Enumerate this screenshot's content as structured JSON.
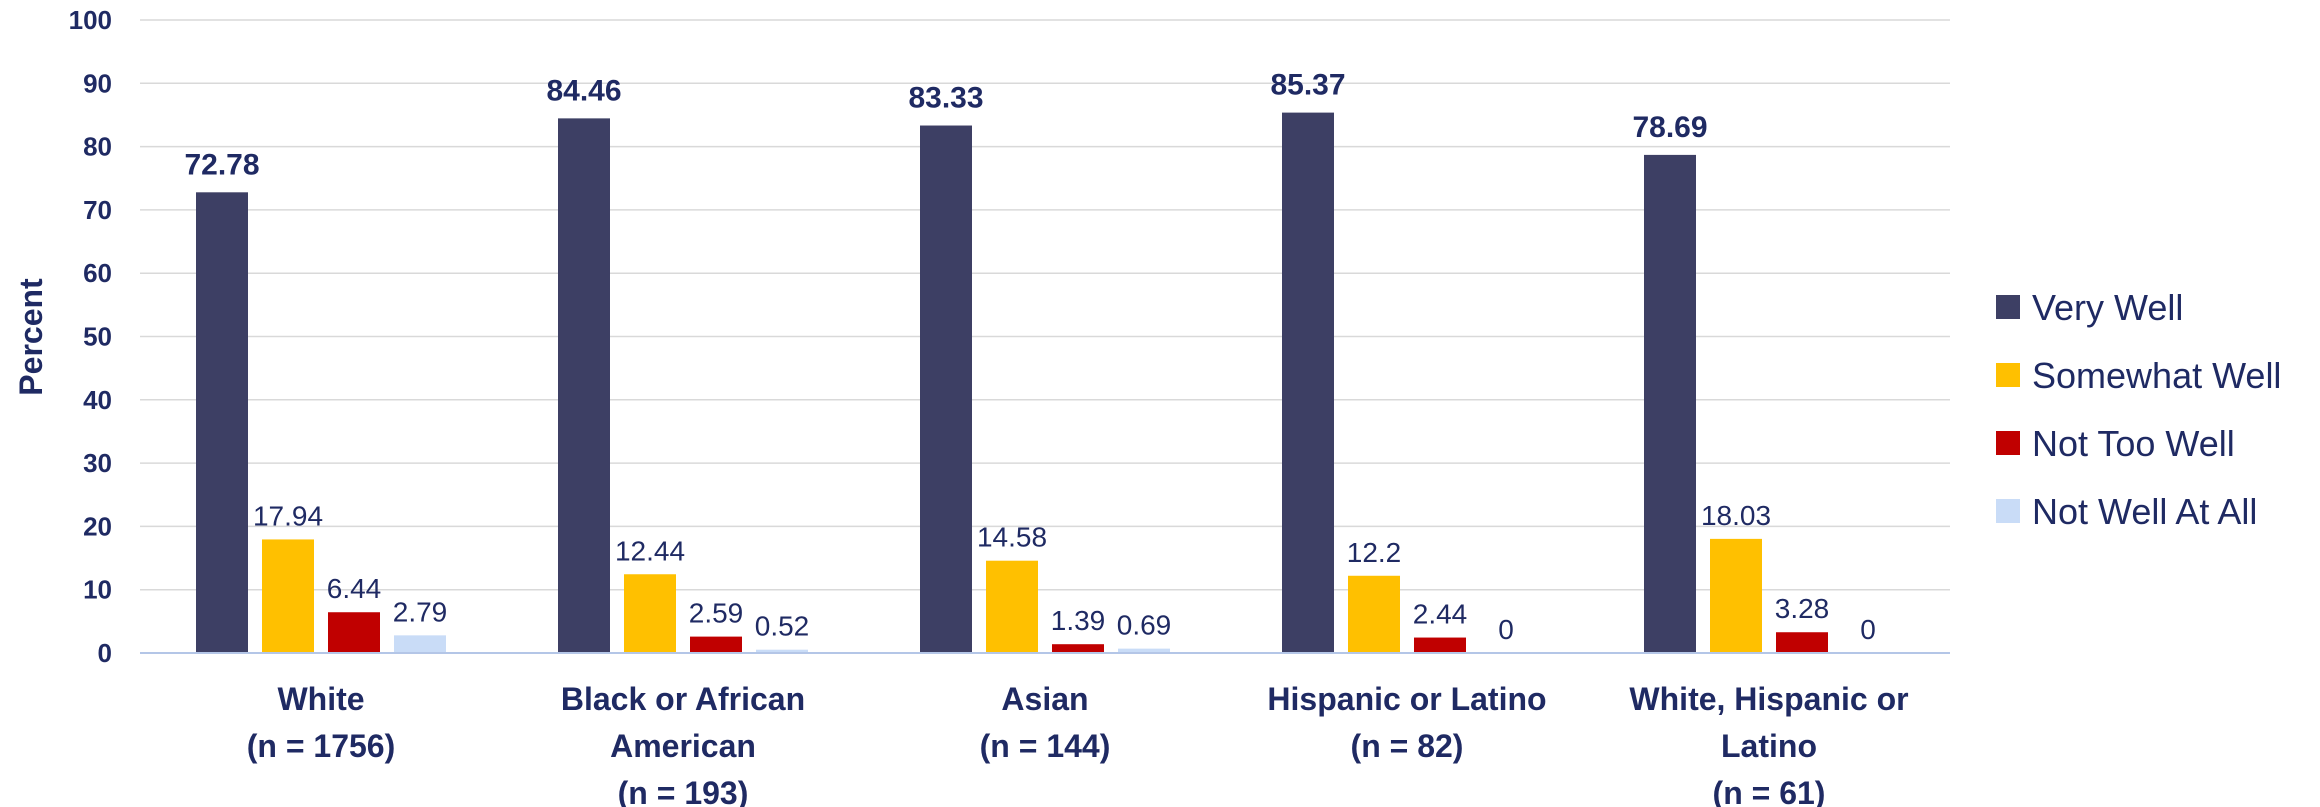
{
  "chart_data": {
    "type": "bar",
    "categories": [
      [
        "White",
        "(n = 1756)"
      ],
      [
        "Black or African",
        "American",
        "(n = 193)"
      ],
      [
        "Asian",
        "(n = 144)"
      ],
      [
        "Hispanic or Latino",
        "(n = 82)"
      ],
      [
        "White, Hispanic or",
        "Latino",
        "(n = 61)"
      ]
    ],
    "series": [
      {
        "name": "Very Well",
        "color": "#3d3f64",
        "values": [
          72.78,
          84.46,
          83.33,
          85.37,
          78.69
        ],
        "labels": [
          "72.78",
          "84.46",
          "83.33",
          "85.37",
          "78.69"
        ]
      },
      {
        "name": "Somewhat Well",
        "color": "#ffc000",
        "values": [
          17.94,
          12.44,
          14.58,
          12.2,
          18.03
        ],
        "labels": [
          "17.94",
          "12.44",
          "14.58",
          "12.2",
          "18.03"
        ]
      },
      {
        "name": "Not Too Well",
        "color": "#c00000",
        "values": [
          6.44,
          2.59,
          1.39,
          2.44,
          3.28
        ],
        "labels": [
          "6.44",
          "2.59",
          "1.39",
          "2.44",
          "3.28"
        ]
      },
      {
        "name": "Not Well At All",
        "color": "#c9dcf7",
        "values": [
          2.79,
          0.52,
          0.69,
          0,
          0
        ],
        "labels": [
          "2.79",
          "0.52",
          "0.69",
          "0",
          "0"
        ]
      }
    ],
    "title": "",
    "xlabel": "",
    "ylabel": "Percent",
    "ylim": [
      0,
      100
    ],
    "yticks": [
      "0",
      "10",
      "20",
      "30",
      "40",
      "50",
      "60",
      "70",
      "80",
      "90",
      "100"
    ],
    "grid": true,
    "legend": "right"
  }
}
